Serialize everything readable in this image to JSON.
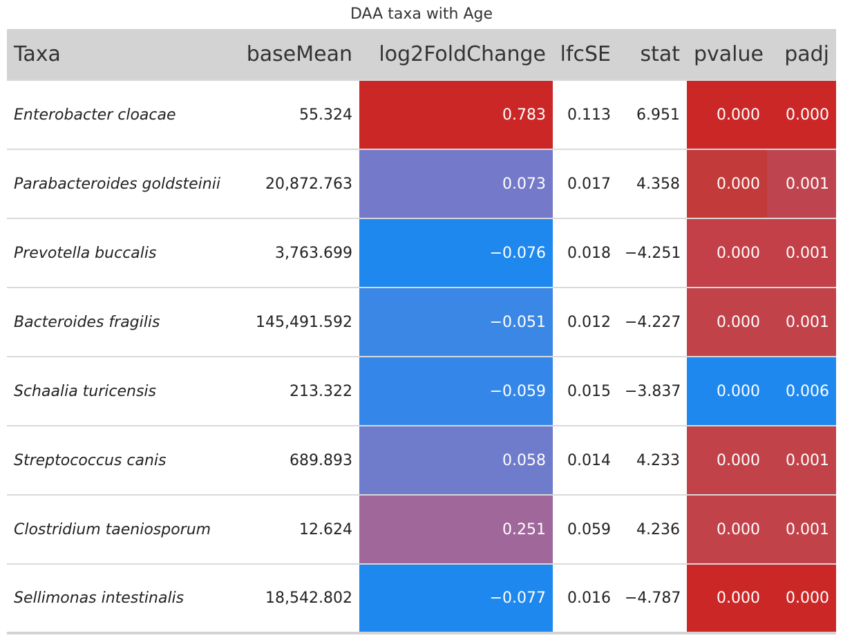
{
  "chart_data": {
    "type": "table",
    "title": "DAA taxa with Age",
    "columns": [
      "Taxa",
      "baseMean",
      "log2FoldChange",
      "lfcSE",
      "stat",
      "pvalue",
      "padj"
    ],
    "rows": [
      {
        "taxa": "Enterobacter cloacae",
        "baseMean": "55.324",
        "log2FoldChange": "0.783",
        "lfcSE": "0.113",
        "stat": "6.951",
        "pvalue": "0.000",
        "padj": "0.000",
        "colors": {
          "log2FoldChange": "#cb2727",
          "pvalue": "#cb2727",
          "padj": "#cb2727"
        }
      },
      {
        "taxa": "Parabacteroides goldsteinii",
        "baseMean": "20,872.763",
        "log2FoldChange": "0.073",
        "lfcSE": "0.017",
        "stat": "4.358",
        "pvalue": "0.000",
        "padj": "0.001",
        "colors": {
          "log2FoldChange": "#7579c9",
          "pvalue": "#c33a3a",
          "padj": "#be4550"
        }
      },
      {
        "taxa": "Prevotella buccalis",
        "baseMean": "3,763.699",
        "log2FoldChange": "−0.076",
        "lfcSE": "0.018",
        "stat": "−4.251",
        "pvalue": "0.000",
        "padj": "0.001",
        "colors": {
          "log2FoldChange": "#1e88ee",
          "pvalue": "#c34048",
          "padj": "#c34048"
        }
      },
      {
        "taxa": "Bacteroides fragilis",
        "baseMean": "145,491.592",
        "log2FoldChange": "−0.051",
        "lfcSE": "0.012",
        "stat": "−4.227",
        "pvalue": "0.000",
        "padj": "0.001",
        "colors": {
          "log2FoldChange": "#3b87e6",
          "pvalue": "#c2424a",
          "padj": "#c2424a"
        }
      },
      {
        "taxa": "Schaalia turicensis",
        "baseMean": "213.322",
        "log2FoldChange": "−0.059",
        "lfcSE": "0.015",
        "stat": "−3.837",
        "pvalue": "0.000",
        "padj": "0.006",
        "colors": {
          "log2FoldChange": "#3487e8",
          "pvalue": "#1e88ee",
          "padj": "#1e88ee"
        }
      },
      {
        "taxa": "Streptococcus canis",
        "baseMean": "689.893",
        "log2FoldChange": "0.058",
        "lfcSE": "0.014",
        "stat": "4.233",
        "pvalue": "0.000",
        "padj": "0.001",
        "colors": {
          "log2FoldChange": "#6f7bcb",
          "pvalue": "#c2424a",
          "padj": "#c2424a"
        }
      },
      {
        "taxa": "Clostridium taeniosporum",
        "baseMean": "12.624",
        "log2FoldChange": "0.251",
        "lfcSE": "0.059",
        "stat": "4.236",
        "pvalue": "0.000",
        "padj": "0.001",
        "colors": {
          "log2FoldChange": "#a0679a",
          "pvalue": "#c2424a",
          "padj": "#c2424a"
        }
      },
      {
        "taxa": "Sellimonas intestinalis",
        "baseMean": "18,542.802",
        "log2FoldChange": "−0.077",
        "lfcSE": "0.016",
        "stat": "−4.787",
        "pvalue": "0.000",
        "padj": "0.000",
        "colors": {
          "log2FoldChange": "#1e88ee",
          "pvalue": "#cb2727",
          "padj": "#cb2727"
        }
      }
    ]
  }
}
